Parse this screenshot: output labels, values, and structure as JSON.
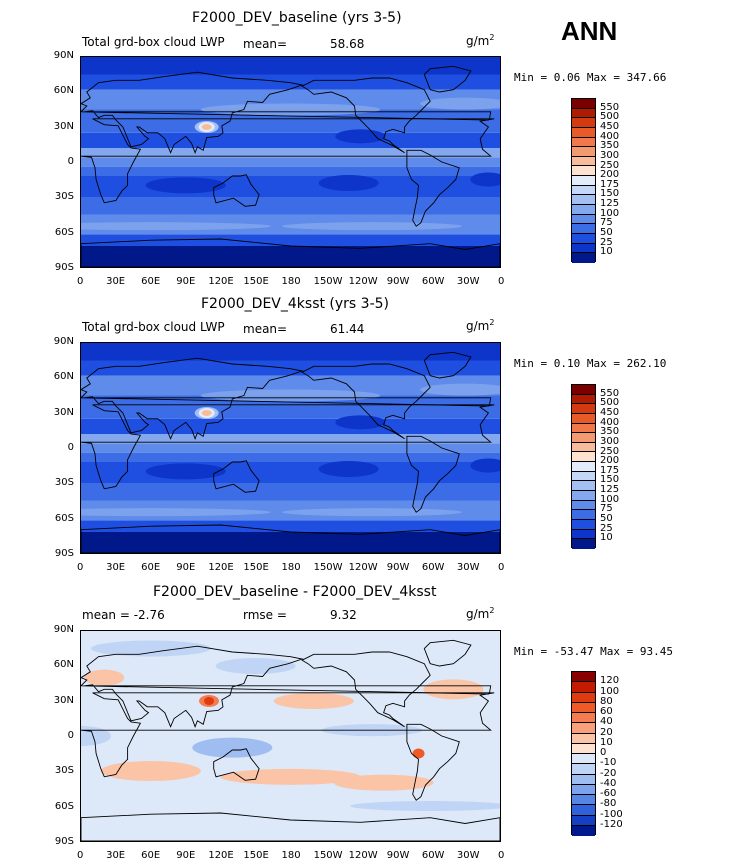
{
  "season": "ANN",
  "unit": "g/m",
  "unit_sup": "2",
  "lat_ticks": [
    "90N",
    "60N",
    "30N",
    "0",
    "30S",
    "60S",
    "90S"
  ],
  "lon_ticks": [
    "0",
    "30E",
    "60E",
    "90E",
    "120E",
    "150E",
    "180",
    "150W",
    "120W",
    "90W",
    "60W",
    "30W",
    "0"
  ],
  "panels": [
    {
      "title": "F2000_DEV_baseline (yrs 3-5)",
      "left_label": "Total grd-box cloud LWP",
      "stat1_label": "mean=",
      "stat1_value": "58.68",
      "stat2_label": "",
      "stat2_value": "",
      "minmax": "Min =   0.06 Max = 347.66",
      "levels": [
        "550",
        "500",
        "450",
        "400",
        "350",
        "300",
        "250",
        "200",
        "175",
        "150",
        "125",
        "100",
        "75",
        "50",
        "25",
        "10"
      ],
      "colors": [
        "#7a0000",
        "#b01a00",
        "#d43a10",
        "#e85a28",
        "#f0784a",
        "#f49a70",
        "#f8bc9c",
        "#fde3cf",
        "#e3ecfb",
        "#c4d7f6",
        "#a4c0f2",
        "#84a8ee",
        "#5f8bea",
        "#3c6de6",
        "#1f4fe0",
        "#0d35c9",
        "#00188a"
      ]
    },
    {
      "title": "F2000_DEV_4ksst (yrs 3-5)",
      "left_label": "Total grd-box cloud LWP",
      "stat1_label": "mean=",
      "stat1_value": "61.44",
      "stat2_label": "",
      "stat2_value": "",
      "minmax": "Min =   0.10 Max = 262.10",
      "levels": [
        "550",
        "500",
        "450",
        "400",
        "350",
        "300",
        "250",
        "200",
        "175",
        "150",
        "125",
        "100",
        "75",
        "50",
        "25",
        "10"
      ],
      "colors": [
        "#7a0000",
        "#b01a00",
        "#d43a10",
        "#e85a28",
        "#f0784a",
        "#f49a70",
        "#f8bc9c",
        "#fde3cf",
        "#e3ecfb",
        "#c4d7f6",
        "#a4c0f2",
        "#84a8ee",
        "#5f8bea",
        "#3c6de6",
        "#1f4fe0",
        "#0d35c9",
        "#00188a"
      ]
    },
    {
      "title": "F2000_DEV_baseline - F2000_DEV_4ksst",
      "left_label": "mean =   -2.76",
      "stat1_label": "rmse =",
      "stat1_value": "9.32",
      "stat2_label": "",
      "stat2_value": "",
      "minmax": "Min = -53.47 Max =  93.45",
      "levels": [
        "120",
        "100",
        "80",
        "60",
        "40",
        "20",
        "10",
        "0",
        "-10",
        "-20",
        "-40",
        "-60",
        "-80",
        "-100",
        "-120"
      ],
      "colors": [
        "#8a0000",
        "#c41a00",
        "#e03a10",
        "#f05a28",
        "#f47c50",
        "#f8a07a",
        "#fbc4a6",
        "#fde3cf",
        "#dde8f8",
        "#c0d5f5",
        "#9fbdf1",
        "#7ca3ec",
        "#5586e6",
        "#2f62dc",
        "#1640c4",
        "#001a8e"
      ]
    }
  ]
}
